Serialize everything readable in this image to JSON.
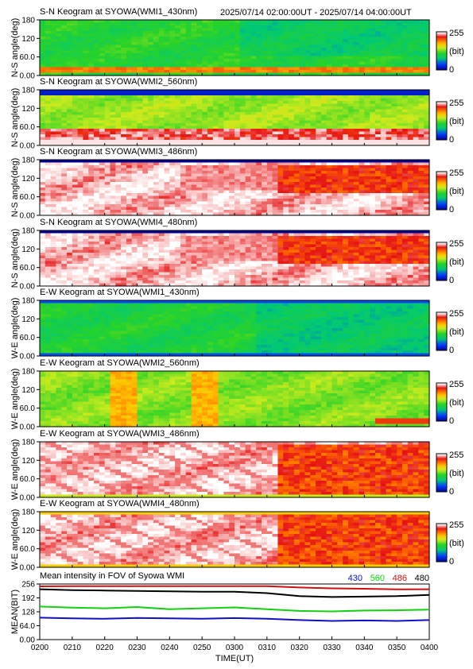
{
  "header": {
    "time_range": "2025/07/14 02:00:00UT - 2025/07/14 04:00:00UT"
  },
  "colorbar": {
    "max_label": "255",
    "unit_label": "(bit)",
    "min_label": "0"
  },
  "chart_data": [
    {
      "type": "heatmap",
      "title": "S-N Keogram at SYOWA(WMI1_430nm)",
      "ylabel": "N-S angle(deg)",
      "yticks": [
        "0.00",
        "60.0",
        "120",
        "180"
      ],
      "ylim": [
        0,
        180
      ],
      "xlim": [
        "02:00",
        "04:00"
      ],
      "colorscale": "blue-green-yellow-red-white",
      "clim": [
        0,
        255
      ],
      "base_intensity": 110,
      "feature": "green field with bright yellow-orange auroral band near 15-25 deg"
    },
    {
      "type": "heatmap",
      "title": "S-N Keogram at SYOWA(WMI2_560nm)",
      "ylabel": "N-S angle(deg)",
      "yticks": [
        "0.00",
        "60.0",
        "120",
        "180"
      ],
      "ylim": [
        0,
        180
      ],
      "xlim": [
        "02:00",
        "04:00"
      ],
      "colorscale": "blue-green-yellow-red-white",
      "clim": [
        0,
        255
      ],
      "base_intensity": 140,
      "feature": "green-yellow field with saturated red/white band near 20-50 deg"
    },
    {
      "type": "heatmap",
      "title": "S-N Keogram at SYOWA(WMI3_486nm)",
      "ylabel": "N-S angle(deg)",
      "yticks": [
        "0.00",
        "60.0",
        "120",
        "180"
      ],
      "ylim": [
        0,
        180
      ],
      "xlim": [
        "02:00",
        "04:00"
      ],
      "colorscale": "blue-green-yellow-red-white",
      "clim": [
        0,
        255
      ],
      "base_intensity": 245,
      "feature": "mostly saturated white, red-orange region after 03:20 between 80-160 deg"
    },
    {
      "type": "heatmap",
      "title": "S-N Keogram at SYOWA(WMI4_480nm)",
      "ylabel": "N-S angle(deg)",
      "yticks": [
        "0.00",
        "60.0",
        "120",
        "180"
      ],
      "ylim": [
        0,
        180
      ],
      "xlim": [
        "02:00",
        "04:00"
      ],
      "colorscale": "blue-green-yellow-red-white",
      "clim": [
        0,
        255
      ],
      "base_intensity": 245,
      "feature": "mostly saturated white, red-orange region after 03:20 between 70-160 deg"
    },
    {
      "type": "heatmap",
      "title": "E-W Keogram at SYOWA(WMI1_430nm)",
      "ylabel": "W-E angle(deg)",
      "yticks": [
        "0.00",
        "60.0",
        "120",
        "180"
      ],
      "ylim": [
        0,
        180
      ],
      "xlim": [
        "02:00",
        "04:00"
      ],
      "colorscale": "blue-green-yellow-red-white",
      "clim": [
        0,
        255
      ],
      "base_intensity": 105,
      "feature": "green field, darker blue-green after 03:10, blue edges"
    },
    {
      "type": "heatmap",
      "title": "E-W Keogram at SYOWA(WMI2_560nm)",
      "ylabel": "W-E angle(deg)",
      "yticks": [
        "0.00",
        "60.0",
        "120",
        "180"
      ],
      "ylim": [
        0,
        180
      ],
      "xlim": [
        "02:00",
        "04:00"
      ],
      "colorscale": "blue-green-yellow-red-white",
      "clim": [
        0,
        255
      ],
      "base_intensity": 135,
      "feature": "yellow-green with orange patches near 02:25 and 02:50, red spots after 03:45 near 10 deg"
    },
    {
      "type": "heatmap",
      "title": "E-W Keogram at SYOWA(WMI3_486nm)",
      "ylabel": "W-E angle(deg)",
      "yticks": [
        "0.00",
        "60.0",
        "120",
        "180"
      ],
      "ylim": [
        0,
        180
      ],
      "xlim": [
        "02:00",
        "04:00"
      ],
      "colorscale": "blue-green-yellow-red-white",
      "clim": [
        0,
        255
      ],
      "base_intensity": 245,
      "feature": "saturated white with diagonal pink streaks, red-orange region after 03:20"
    },
    {
      "type": "heatmap",
      "title": "E-W Keogram at SYOWA(WMI4_480nm)",
      "ylabel": "W-E angle(deg)",
      "yticks": [
        "0.00",
        "60.0",
        "120",
        "180"
      ],
      "ylim": [
        0,
        180
      ],
      "xlim": [
        "02:00",
        "04:00"
      ],
      "colorscale": "blue-green-yellow-red-white",
      "clim": [
        0,
        255
      ],
      "base_intensity": 245,
      "feature": "saturated white with diagonal pink streaks, red-orange region after 03:20"
    },
    {
      "type": "line",
      "title": "Mean intensity in FOV of Syowa WMI",
      "xlabel": "TIME(UT)",
      "ylabel": "MEAN(BIT)",
      "yticks": [
        "0.00",
        "64.0",
        "128",
        "192",
        "256"
      ],
      "ylim": [
        0,
        256
      ],
      "x_tick_labels": [
        "0200",
        "0210",
        "0220",
        "0230",
        "0240",
        "0250",
        "0300",
        "0310",
        "0320",
        "0330",
        "0340",
        "0350",
        "0400"
      ],
      "x": [
        "02:00",
        "02:10",
        "02:20",
        "02:30",
        "02:40",
        "02:50",
        "03:00",
        "03:10",
        "03:20",
        "03:30",
        "03:40",
        "03:50",
        "04:00"
      ],
      "legend_placement": "top-right",
      "series": [
        {
          "name": "430",
          "color": "#1010c8",
          "values": [
            101,
            98,
            96,
            100,
            98,
            96,
            99,
            96,
            90,
            86,
            88,
            86,
            90
          ]
        },
        {
          "name": "560",
          "color": "#10d010",
          "values": [
            152,
            147,
            144,
            150,
            140,
            144,
            148,
            140,
            132,
            130,
            134,
            135,
            138
          ]
        },
        {
          "name": "486",
          "color": "#d01010",
          "values": [
            245,
            246,
            246,
            246,
            246,
            246,
            246,
            246,
            240,
            236,
            234,
            231,
            232
          ]
        },
        {
          "name": "480",
          "color": "#000000",
          "values": [
            232,
            228,
            226,
            224,
            222,
            220,
            220,
            214,
            200,
            196,
            198,
            200,
            206
          ]
        }
      ]
    }
  ]
}
